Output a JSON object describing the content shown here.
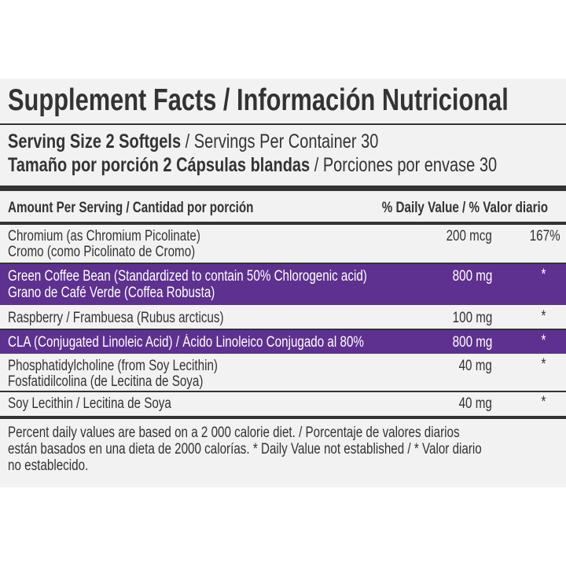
{
  "title": "Supplement Facts / Información Nutricional",
  "serving": {
    "line1_bold": "Serving Size 2 Softgels",
    "line1_rest": " / Servings Per Container 30",
    "line2_bold": "Tamaño por porción 2 Cápsulas blandas",
    "line2_rest": " / Porciones por envase 30"
  },
  "header": {
    "amount": "Amount Per Serving / Cantidad por porción",
    "daily_value": "% Daily Value / % Valor diario"
  },
  "rows": [
    {
      "line1": "Chromium (as Chromium Picolinate)",
      "line2": "Cromo (como Picolinato de Cromo)",
      "amount": "200 mcg",
      "dv": "167%"
    },
    {
      "line1": "Green Coffee Bean (Standardized to contain 50% Chlorogenic acid)",
      "line2": "Grano de Café Verde (Coffea Robusta)",
      "amount": "800 mg",
      "dv": "*"
    },
    {
      "line1": "Raspberry / Frambuesa (Rubus arcticus)",
      "amount": "100 mg",
      "dv": "*"
    },
    {
      "line1": "CLA (Conjugated Linoleic Acid) / Ácido Linoleico Conjugado al 80%",
      "amount": "800 mg",
      "dv": "*"
    },
    {
      "line1": "Phosphatidylcholine (from Soy Lecithin)",
      "line2": "Fosfatidilcolina (de Lecitina de Soya)",
      "amount": "40 mg",
      "dv": "*"
    },
    {
      "line1": "Soy Lecithin / Lecitina de Soya",
      "amount": "40 mg",
      "dv": "*"
    }
  ],
  "footnote": {
    "line1": "Percent daily values are based on a 2 000 calorie diet.  / Porcentaje de valores diarios",
    "line2": "están basados en una dieta de 2000 calorías. * Daily Value not established / * Valor diario",
    "line3": "no establecido."
  },
  "colors": {
    "accent": "#5e3190",
    "text": "#333333",
    "panel": "#f2f2f2"
  }
}
